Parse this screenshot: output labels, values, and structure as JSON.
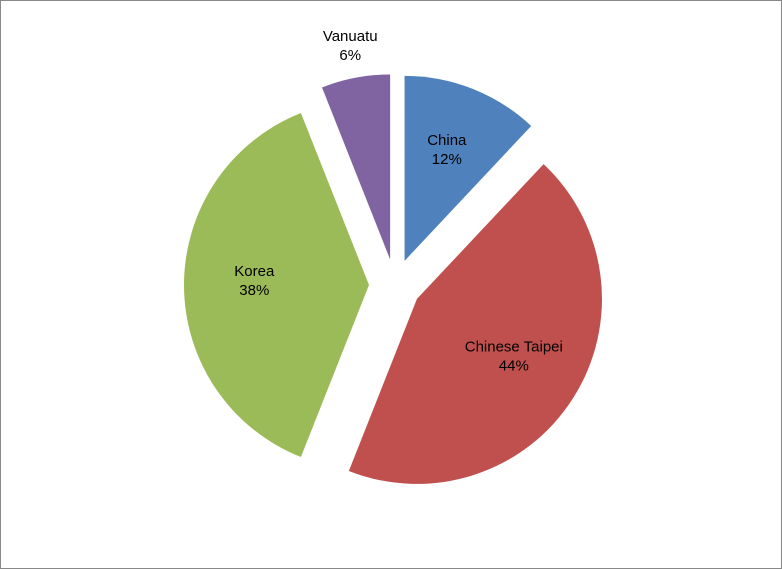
{
  "chart_data": {
    "type": "pie",
    "categories": [
      "China",
      "Chinese Taipei",
      "Korea",
      "Vanuatu"
    ],
    "values": [
      12,
      44,
      38,
      6
    ],
    "value_labels": [
      "12%",
      "44%",
      "38%",
      "6%"
    ],
    "colors": [
      "#4f81bd",
      "#c0504d",
      "#9bbb59",
      "#8064a2"
    ],
    "exploded": true
  }
}
